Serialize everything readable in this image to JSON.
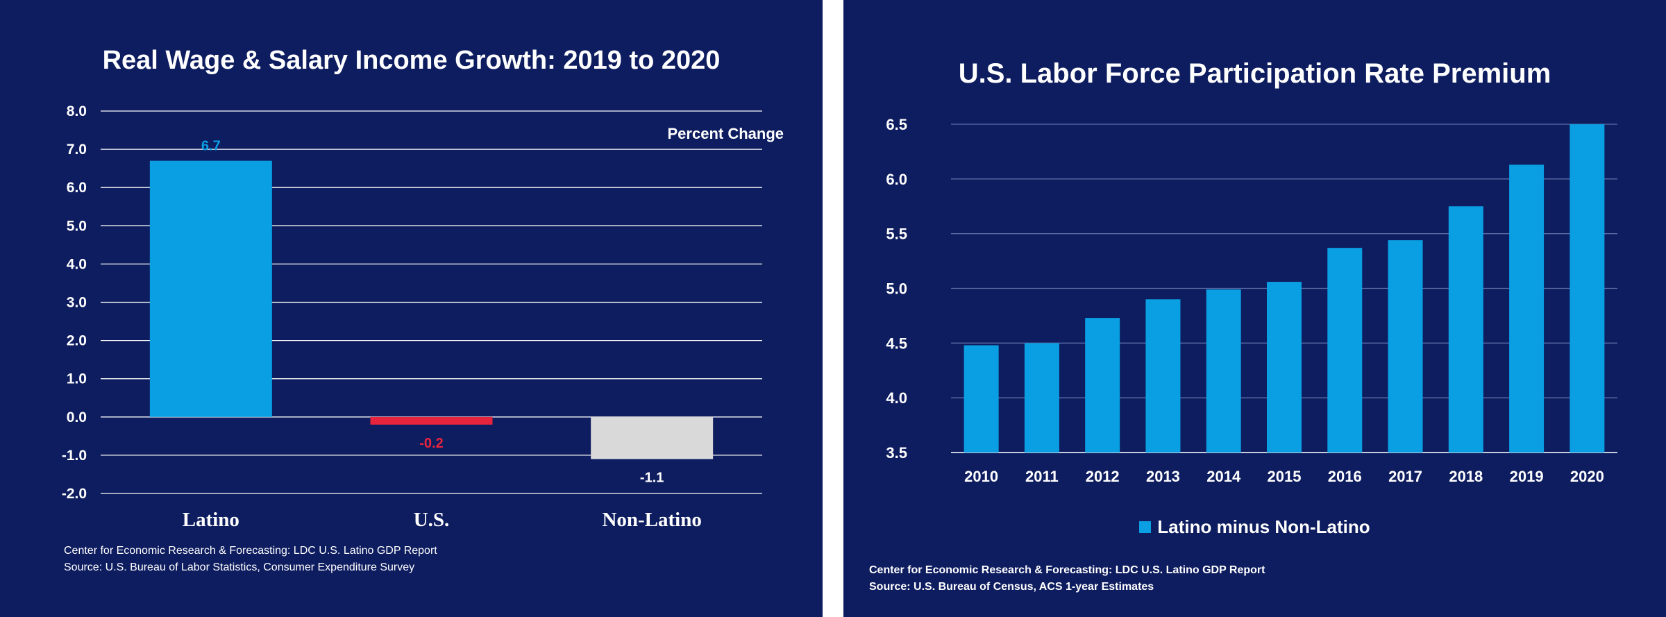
{
  "chart_data": [
    {
      "type": "bar",
      "title": "Real Wage & Salary Income Growth: 2019 to 2020",
      "unit_label": "Percent Change",
      "categories": [
        "Latino",
        "U.S.",
        "Non-Latino"
      ],
      "values": [
        6.7,
        -0.2,
        -1.1
      ],
      "data_labels": [
        "6.7",
        "-0.2",
        "-1.1"
      ],
      "bar_colors": [
        "#0a9ee3",
        "#e6243e",
        "#d9d9d9"
      ],
      "label_colors": [
        "#0a9ee3",
        "#e6243e",
        "#ffffff"
      ],
      "ylim": [
        -2.0,
        8.0
      ],
      "yticks": [
        "8.0",
        "7.0",
        "6.0",
        "5.0",
        "4.0",
        "3.0",
        "2.0",
        "1.0",
        "0.0",
        "-1.0",
        "-2.0"
      ],
      "grid": true,
      "source_lines": [
        "Center for Economic Research & Forecasting: LDC U.S. Latino GDP Report",
        "Source: U.S. Bureau of Labor Statistics, Consumer Expenditure Survey"
      ]
    },
    {
      "type": "bar",
      "title": "U.S. Labor Force Participation Rate Premium",
      "categories": [
        "2010",
        "2011",
        "2012",
        "2013",
        "2014",
        "2015",
        "2016",
        "2017",
        "2018",
        "2019",
        "2020"
      ],
      "series": [
        {
          "name": "Latino minus Non-Latino",
          "values": [
            4.48,
            4.5,
            4.73,
            4.9,
            4.99,
            5.06,
            5.37,
            5.44,
            5.75,
            6.13,
            6.5
          ]
        }
      ],
      "bar_color": "#0a9ee3",
      "ylim": [
        3.5,
        6.5
      ],
      "yticks": [
        "6.5",
        "6.0",
        "5.5",
        "5.0",
        "4.5",
        "4.0",
        "3.5"
      ],
      "grid": true,
      "legend_position": "bottom",
      "source_lines": [
        "Center for Economic Research & Forecasting: LDC U.S. Latino GDP Report",
        "Source: U.S. Bureau of Census, ACS 1-year Estimates"
      ]
    }
  ]
}
